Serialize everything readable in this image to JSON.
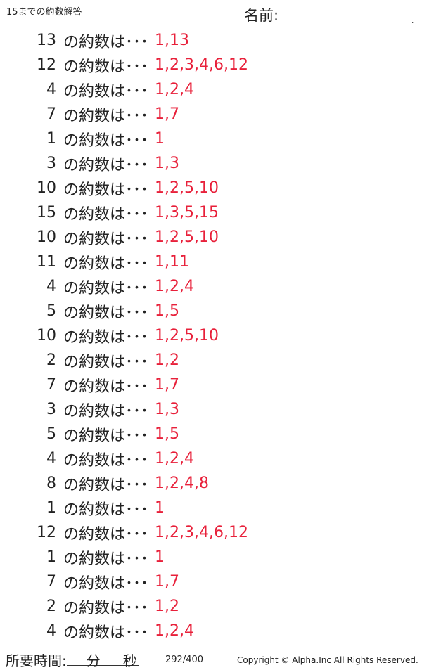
{
  "header": {
    "title": "15までの約数解答",
    "name_label": "名前:",
    "name_end": "."
  },
  "question_suffix": "の約数は･･･",
  "rows": [
    {
      "n": "13",
      "a": "1,13"
    },
    {
      "n": "12",
      "a": "1,2,3,4,6,12"
    },
    {
      "n": "4",
      "a": "1,2,4"
    },
    {
      "n": "7",
      "a": "1,7"
    },
    {
      "n": "1",
      "a": "1"
    },
    {
      "n": "3",
      "a": "1,3"
    },
    {
      "n": "10",
      "a": "1,2,5,10"
    },
    {
      "n": "15",
      "a": "1,3,5,15"
    },
    {
      "n": "10",
      "a": "1,2,5,10"
    },
    {
      "n": "11",
      "a": "1,11"
    },
    {
      "n": "4",
      "a": "1,2,4"
    },
    {
      "n": "5",
      "a": "1,5"
    },
    {
      "n": "10",
      "a": "1,2,5,10"
    },
    {
      "n": "2",
      "a": "1,2"
    },
    {
      "n": "7",
      "a": "1,7"
    },
    {
      "n": "3",
      "a": "1,3"
    },
    {
      "n": "5",
      "a": "1,5"
    },
    {
      "n": "4",
      "a": "1,2,4"
    },
    {
      "n": "8",
      "a": "1,2,4,8"
    },
    {
      "n": "1",
      "a": "1"
    },
    {
      "n": "12",
      "a": "1,2,3,4,6,12"
    },
    {
      "n": "1",
      "a": "1"
    },
    {
      "n": "7",
      "a": "1,7"
    },
    {
      "n": "2",
      "a": "1,2"
    },
    {
      "n": "4",
      "a": "1,2,4"
    }
  ],
  "footer": {
    "time_label": "所要時間:",
    "minutes": "分",
    "seconds": "秒",
    "page": "292/400",
    "copyright": "Copyright ©  Alpha.Inc All Rights Reserved."
  },
  "colors": {
    "answer": "#e8203a"
  }
}
